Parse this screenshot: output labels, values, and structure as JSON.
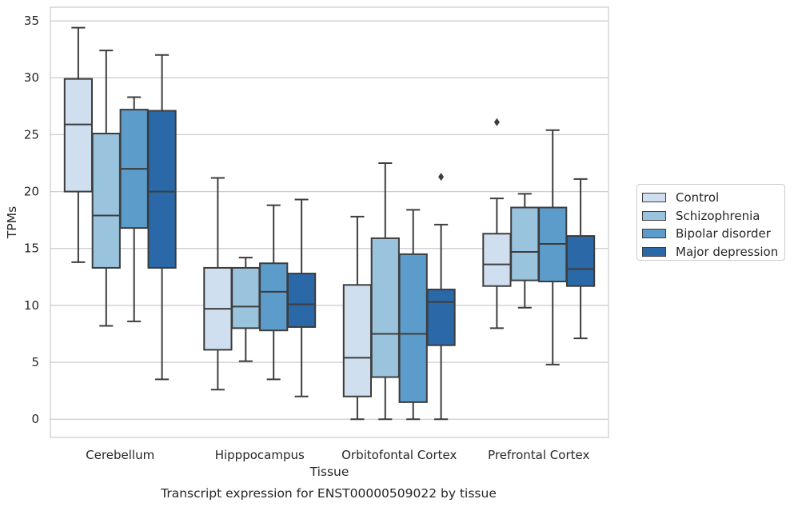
{
  "chart_data": {
    "type": "box",
    "title": "Transcript expression for ENST00000509022 by tissue",
    "xlabel": "Tissue",
    "ylabel": "TPMs",
    "ylim": [
      -1.6,
      36.2
    ],
    "yticks": [
      0,
      5,
      10,
      15,
      20,
      25,
      30,
      35
    ],
    "grid": "horizontal",
    "legend_position": "right",
    "categories": [
      "Cerebellum",
      "Hipppocampus",
      "Orbitofontal Cortex",
      "Prefrontal Cortex"
    ],
    "series": [
      {
        "name": "Control",
        "color": "#d0dff0",
        "boxes": [
          {
            "whislo": 13.8,
            "q1": 20.0,
            "med": 25.9,
            "q3": 29.9,
            "whishi": 34.4,
            "fliers": []
          },
          {
            "whislo": 2.6,
            "q1": 6.1,
            "med": 9.7,
            "q3": 13.3,
            "whishi": 21.2,
            "fliers": []
          },
          {
            "whislo": 0.0,
            "q1": 2.0,
            "med": 5.4,
            "q3": 11.8,
            "whishi": 17.8,
            "fliers": []
          },
          {
            "whislo": 8.0,
            "q1": 11.7,
            "med": 13.6,
            "q3": 16.3,
            "whishi": 19.4,
            "fliers": [
              26.1
            ]
          }
        ]
      },
      {
        "name": "Schizophrenia",
        "color": "#9ac3de",
        "boxes": [
          {
            "whislo": 8.2,
            "q1": 13.3,
            "med": 17.9,
            "q3": 25.1,
            "whishi": 32.4,
            "fliers": []
          },
          {
            "whislo": 5.1,
            "q1": 8.0,
            "med": 9.9,
            "q3": 13.3,
            "whishi": 14.2,
            "fliers": []
          },
          {
            "whislo": 0.0,
            "q1": 3.7,
            "med": 7.5,
            "q3": 15.9,
            "whishi": 22.5,
            "fliers": []
          },
          {
            "whislo": 9.8,
            "q1": 12.2,
            "med": 14.7,
            "q3": 18.6,
            "whishi": 19.8,
            "fliers": []
          }
        ]
      },
      {
        "name": "Bipolar disorder",
        "color": "#5b9ccb",
        "boxes": [
          {
            "whislo": 8.6,
            "q1": 16.8,
            "med": 22.0,
            "q3": 27.2,
            "whishi": 28.3,
            "fliers": []
          },
          {
            "whislo": 3.5,
            "q1": 7.8,
            "med": 11.2,
            "q3": 13.7,
            "whishi": 18.8,
            "fliers": []
          },
          {
            "whislo": 0.0,
            "q1": 1.5,
            "med": 7.5,
            "q3": 14.5,
            "whishi": 18.4,
            "fliers": []
          },
          {
            "whislo": 4.8,
            "q1": 12.1,
            "med": 15.4,
            "q3": 18.6,
            "whishi": 25.4,
            "fliers": []
          }
        ]
      },
      {
        "name": "Major depression",
        "color": "#2a68a7",
        "boxes": [
          {
            "whislo": 3.5,
            "q1": 13.3,
            "med": 20.0,
            "q3": 27.1,
            "whishi": 32.0,
            "fliers": []
          },
          {
            "whislo": 2.0,
            "q1": 8.1,
            "med": 10.1,
            "q3": 12.8,
            "whishi": 19.3,
            "fliers": []
          },
          {
            "whislo": 0.0,
            "q1": 6.5,
            "med": 10.3,
            "q3": 11.4,
            "whishi": 17.1,
            "fliers": [
              21.3
            ]
          },
          {
            "whislo": 7.1,
            "q1": 11.7,
            "med": 13.2,
            "q3": 16.1,
            "whishi": 21.1,
            "fliers": []
          }
        ]
      }
    ]
  }
}
